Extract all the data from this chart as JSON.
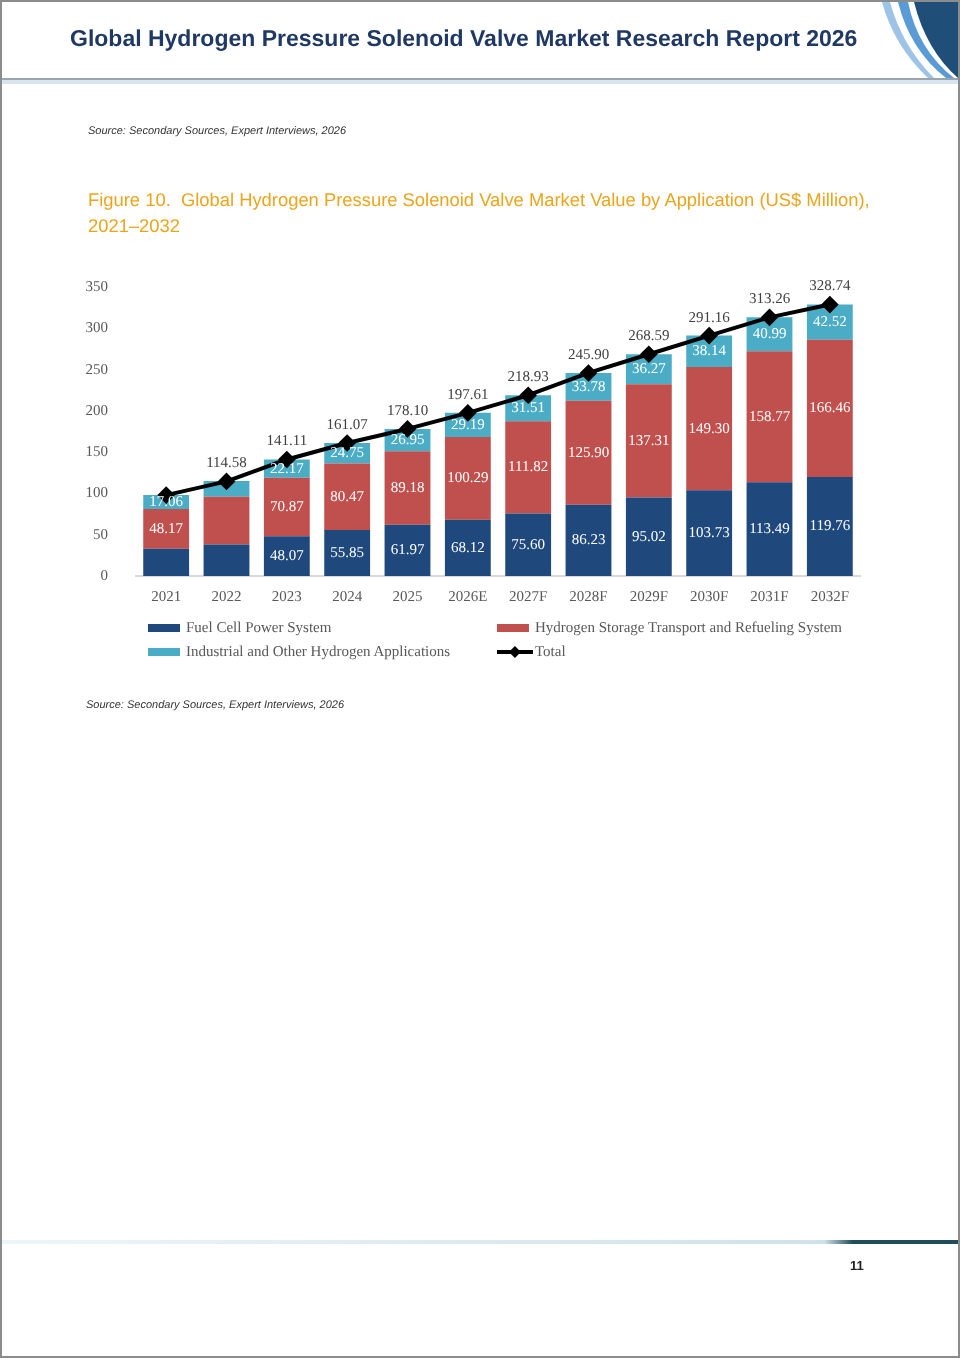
{
  "chart_data": {
    "type": "bar",
    "title": "Figure 10.  Global Hydrogen Pressure Solenoid Valve Market Value by Application (US$ Million), 2021–2032",
    "annotations": [
      "Global Hydrogen Pressure Solenoid Valve Market Research Report 2026",
      "Source: Secondary Sources, Expert Interviews, 2026",
      "Source: Secondary Sources, Expert Interviews, 2026",
      "11"
    ],
    "categories": [
      "2021",
      "2022",
      "2023",
      "2024",
      "2025",
      "2026E",
      "2027F",
      "2028F",
      "2029F",
      "2030F",
      "2031F",
      "2032F"
    ],
    "stacked": true,
    "ylim": [
      0,
      350
    ],
    "yticks": [
      0,
      50,
      100,
      150,
      200,
      250,
      300,
      350
    ],
    "legend": "bottom",
    "marker": "diamond",
    "series": [
      {
        "name": "Fuel Cell Power System",
        "color": "#1f497d",
        "values": [
          33,
          38,
          48.07,
          55.85,
          61.97,
          68.12,
          75.6,
          86.23,
          95.02,
          103.73,
          113.49,
          119.76
        ],
        "value_labels": [
          null,
          null,
          "48.07",
          "55.85",
          "61.97",
          "68.12",
          "75.60",
          "86.23",
          "95.02",
          "103.73",
          "113.49",
          "119.76"
        ]
      },
      {
        "name": "Hydrogen Storage Transport and Refueling System",
        "color": "#c0504d",
        "values": [
          48.17,
          58,
          70.87,
          80.47,
          89.18,
          100.29,
          111.82,
          125.9,
          137.31,
          149.3,
          158.77,
          166.46
        ],
        "value_labels": [
          "48.17",
          null,
          "70.87",
          "80.47",
          "89.18",
          "100.29",
          "111.82",
          "125.90",
          "137.31",
          "149.30",
          "158.77",
          "166.46"
        ]
      },
      {
        "name": "Industrial and Other Hydrogen Applications",
        "color": "#4bacc6",
        "values": [
          17.06,
          19,
          22.17,
          24.75,
          26.95,
          29.19,
          31.51,
          33.78,
          36.27,
          38.14,
          40.99,
          42.52
        ],
        "value_labels": [
          "17.06",
          null,
          "22.17",
          "24.75",
          "26.95",
          "29.19",
          "31.51",
          "33.78",
          "36.27",
          "38.14",
          "40.99",
          "42.52"
        ]
      },
      {
        "name": "Total",
        "type": "line",
        "color": "#000000",
        "values": [
          98,
          114.58,
          141.11,
          161.07,
          178.1,
          197.61,
          218.93,
          245.9,
          268.59,
          291.16,
          313.26,
          328.74
        ],
        "value_labels": [
          null,
          "114.58",
          "141.11",
          "161.07",
          "178.10",
          "197.61",
          "218.93",
          "245.90",
          "268.59",
          "291.16",
          "313.26",
          "328.74"
        ]
      }
    ]
  }
}
